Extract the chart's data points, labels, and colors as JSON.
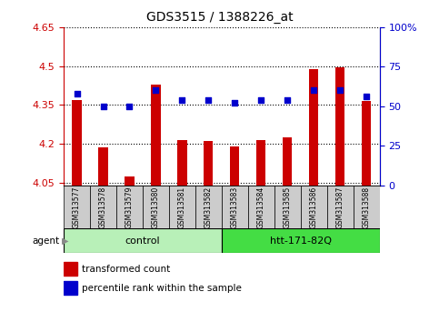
{
  "title": "GDS3515 / 1388226_at",
  "samples": [
    "GSM313577",
    "GSM313578",
    "GSM313579",
    "GSM313580",
    "GSM313581",
    "GSM313582",
    "GSM313583",
    "GSM313584",
    "GSM313585",
    "GSM313586",
    "GSM313587",
    "GSM313588"
  ],
  "groups": [
    {
      "label": "control",
      "color": "#b8f0b8",
      "start": 0,
      "end": 5
    },
    {
      "label": "htt-171-82Q",
      "color": "#44dd44",
      "start": 6,
      "end": 11
    }
  ],
  "transformed_count": [
    4.37,
    4.185,
    4.075,
    4.43,
    4.215,
    4.21,
    4.188,
    4.215,
    4.225,
    4.49,
    4.495,
    4.365
  ],
  "percentile_rank": [
    58,
    50,
    50,
    60,
    54,
    54,
    52,
    54,
    54,
    60,
    60,
    56
  ],
  "ylim_left": [
    4.04,
    4.65
  ],
  "ylim_right": [
    0,
    100
  ],
  "yticks_left": [
    4.05,
    4.2,
    4.35,
    4.5,
    4.65
  ],
  "ytick_labels_left": [
    "4.05",
    "4.2",
    "4.35",
    "4.5",
    "4.65"
  ],
  "yticks_right": [
    0,
    25,
    50,
    75,
    100
  ],
  "ytick_labels_right": [
    "0",
    "25",
    "50",
    "75",
    "100%"
  ],
  "bar_color": "#cc0000",
  "dot_color": "#0000cc",
  "bar_bottom": 4.04,
  "agent_label": "agent",
  "legend_bar": "transformed count",
  "legend_dot": "percentile rank within the sample",
  "left_color": "#cc0000",
  "right_color": "#0000cc",
  "bar_width": 0.35
}
